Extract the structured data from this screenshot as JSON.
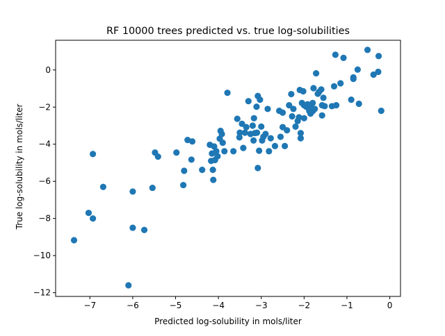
{
  "chart_data": {
    "type": "scatter",
    "title": "RF 10000 trees predicted vs. true log-solubilities",
    "xlabel": "Predicted log-solubility in mols/liter",
    "ylabel": "True log-solubility in mols/liter",
    "xlim": [
      -7.8,
      0.25
    ],
    "ylim": [
      -12.2,
      1.6
    ],
    "xticks": [
      -7,
      -6,
      -5,
      -4,
      -3,
      -2,
      -1,
      0
    ],
    "yticks": [
      -12,
      -10,
      -8,
      -6,
      -4,
      -2,
      0
    ],
    "grid": false,
    "marker_color": "#1f77b4",
    "series": [
      {
        "points": [
          [
            -7.37,
            -9.17
          ],
          [
            -7.03,
            -7.7
          ],
          [
            -6.93,
            -4.53
          ],
          [
            -6.93,
            -8.0
          ],
          [
            -6.69,
            -6.3
          ],
          [
            -6.1,
            -11.6
          ],
          [
            -6.0,
            -6.55
          ],
          [
            -6.0,
            -8.5
          ],
          [
            -5.73,
            -8.62
          ],
          [
            -5.54,
            -6.35
          ],
          [
            -5.48,
            -4.45
          ],
          [
            -5.41,
            -4.67
          ],
          [
            -4.98,
            -4.45
          ],
          [
            -4.82,
            -6.2
          ],
          [
            -4.8,
            -5.43
          ],
          [
            -4.72,
            -3.77
          ],
          [
            -4.63,
            -4.83
          ],
          [
            -4.61,
            -3.85
          ],
          [
            -4.38,
            -5.38
          ],
          [
            -4.2,
            -4.03
          ],
          [
            -4.17,
            -4.9
          ],
          [
            -4.15,
            -4.5
          ],
          [
            -4.13,
            -5.38
          ],
          [
            -4.12,
            -5.92
          ],
          [
            -4.1,
            -4.12
          ],
          [
            -4.08,
            -4.85
          ],
          [
            -4.05,
            -4.38
          ],
          [
            -4.02,
            -4.65
          ],
          [
            -3.97,
            -3.7
          ],
          [
            -3.95,
            -3.28
          ],
          [
            -3.92,
            -3.45
          ],
          [
            -3.9,
            -3.92
          ],
          [
            -3.86,
            -4.38
          ],
          [
            -3.79,
            -1.23
          ],
          [
            -3.65,
            -4.38
          ],
          [
            -3.56,
            -2.63
          ],
          [
            -3.51,
            -3.63
          ],
          [
            -3.5,
            -3.38
          ],
          [
            -3.45,
            -2.9
          ],
          [
            -3.42,
            -4.2
          ],
          [
            -3.38,
            -3.38
          ],
          [
            -3.35,
            -3.08
          ],
          [
            -3.3,
            -1.68
          ],
          [
            -3.25,
            -3.45
          ],
          [
            -3.2,
            -3.0
          ],
          [
            -3.18,
            -3.8
          ],
          [
            -3.17,
            -2.6
          ],
          [
            -3.15,
            -3.4
          ],
          [
            -3.11,
            -1.98
          ],
          [
            -3.1,
            -3.38
          ],
          [
            -3.08,
            -5.28
          ],
          [
            -3.08,
            -1.4
          ],
          [
            -3.05,
            -4.35
          ],
          [
            -3.03,
            -1.6
          ],
          [
            -3.0,
            -3.05
          ],
          [
            -2.98,
            -3.8
          ],
          [
            -2.95,
            -3.6
          ],
          [
            -2.9,
            -3.45
          ],
          [
            -2.85,
            -2.1
          ],
          [
            -2.82,
            -4.38
          ],
          [
            -2.78,
            -3.68
          ],
          [
            -2.68,
            -4.1
          ],
          [
            -2.58,
            -2.2
          ],
          [
            -2.55,
            -3.6
          ],
          [
            -2.5,
            -2.3
          ],
          [
            -2.5,
            -3.08
          ],
          [
            -2.45,
            -4.1
          ],
          [
            -2.4,
            -3.25
          ],
          [
            -2.35,
            -1.9
          ],
          [
            -2.3,
            -1.3
          ],
          [
            -2.28,
            -2.5
          ],
          [
            -2.25,
            -2.1
          ],
          [
            -2.2,
            -3.05
          ],
          [
            -2.15,
            -2.75
          ],
          [
            -2.12,
            -2.55
          ],
          [
            -2.1,
            -1.08
          ],
          [
            -2.08,
            -3.4
          ],
          [
            -2.08,
            -3.68
          ],
          [
            -2.05,
            -1.78
          ],
          [
            -2.02,
            -1.15
          ],
          [
            -2.0,
            -1.9
          ],
          [
            -2.0,
            -2.6
          ],
          [
            -1.95,
            -1.98
          ],
          [
            -1.92,
            -1.85
          ],
          [
            -1.88,
            -2.2
          ],
          [
            -1.85,
            -2.0
          ],
          [
            -1.85,
            -2.35
          ],
          [
            -1.8,
            -1.78
          ],
          [
            -1.8,
            -2.22
          ],
          [
            -1.78,
            -0.98
          ],
          [
            -1.75,
            -2.1
          ],
          [
            -1.72,
            -0.18
          ],
          [
            -1.68,
            -1.28
          ],
          [
            -1.65,
            -1.18
          ],
          [
            -1.6,
            -1.05
          ],
          [
            -1.58,
            -1.9
          ],
          [
            -1.58,
            -2.45
          ],
          [
            -1.55,
            -1.5
          ],
          [
            -1.52,
            -1.95
          ],
          [
            -1.35,
            -1.95
          ],
          [
            -1.3,
            -0.88
          ],
          [
            -1.27,
            0.82
          ],
          [
            -1.25,
            -1.9
          ],
          [
            -1.15,
            -0.72
          ],
          [
            -1.08,
            0.65
          ],
          [
            -0.9,
            -1.6
          ],
          [
            -0.85,
            -0.48
          ],
          [
            -0.85,
            -0.4
          ],
          [
            -0.75,
            0.02
          ],
          [
            -0.72,
            -1.82
          ],
          [
            -0.52,
            1.08
          ],
          [
            -0.38,
            -0.25
          ],
          [
            -0.27,
            -0.1
          ],
          [
            -0.26,
            0.75
          ],
          [
            -0.2,
            -2.2
          ]
        ]
      }
    ]
  }
}
